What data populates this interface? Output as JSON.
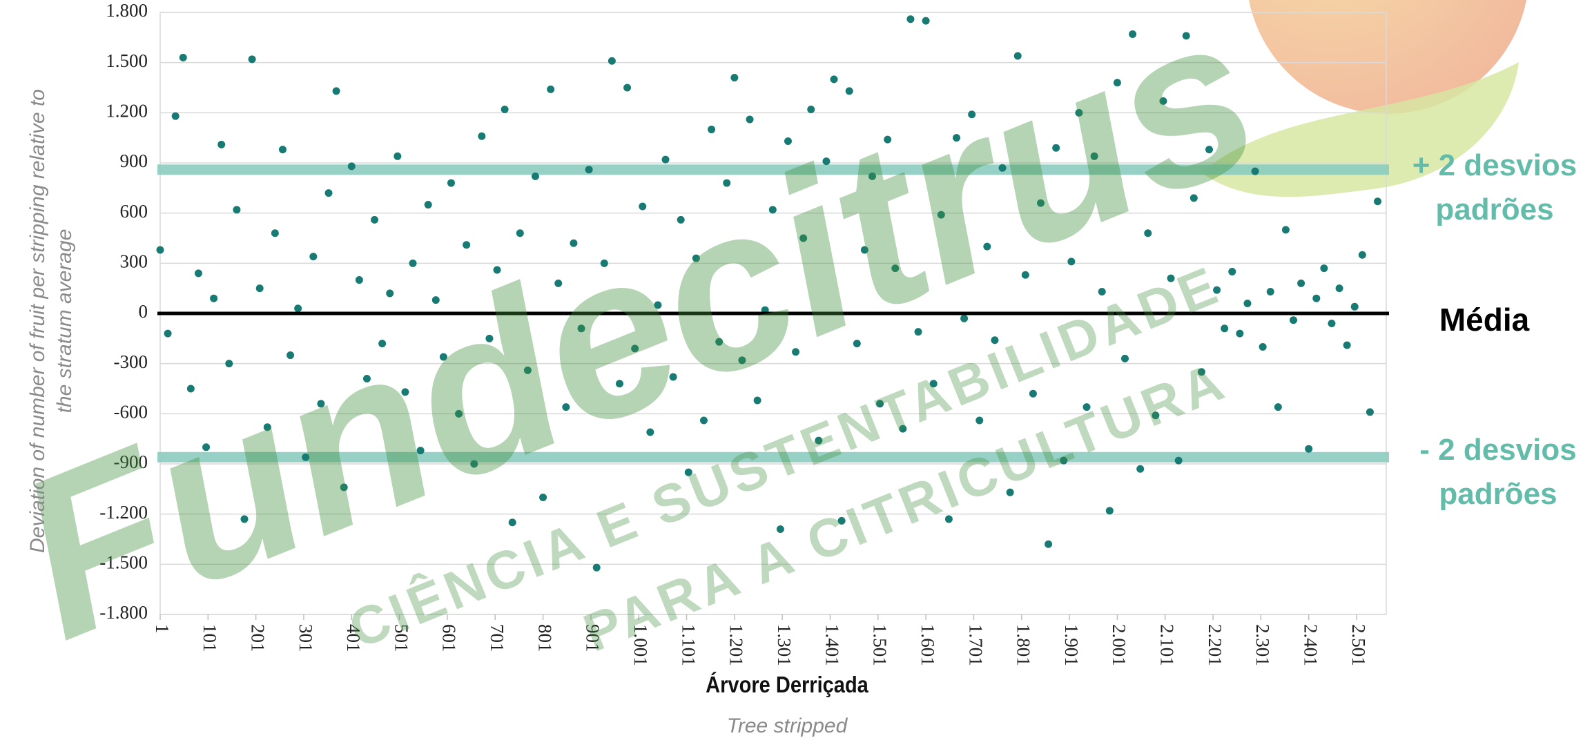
{
  "chart_data": {
    "type": "scatter",
    "y_label": "Deviation of number of fruit per stripping relative to the stratum average",
    "x_label": "Árvore Derriçada",
    "x_sublabel": "Tree stripped",
    "watermark": "Fundecitrus",
    "watermark_slogan": [
      "CIÊNCIA E SUSTENTABILIDADE",
      "PARA A CITRICULTURA"
    ],
    "color": "#177a73",
    "grid": true,
    "xlim": [
      1,
      2563
    ],
    "ylim": [
      -1800,
      1800
    ],
    "yticks": [
      {
        "value": -1800,
        "label": "-1.800"
      },
      {
        "value": -1500,
        "label": "-1.500"
      },
      {
        "value": -1200,
        "label": "-1.200"
      },
      -900,
      -600,
      -300,
      0,
      300,
      600,
      900,
      {
        "value": 1200,
        "label": "1.200"
      },
      {
        "value": 1500,
        "label": "1.500"
      },
      {
        "value": 1800,
        "label": "1.800"
      }
    ],
    "xticks": [
      1,
      101,
      201,
      301,
      401,
      501,
      601,
      701,
      801,
      901,
      {
        "value": 1001,
        "label": "1.001"
      },
      {
        "value": 1101,
        "label": "1.101"
      },
      {
        "value": 1201,
        "label": "1.201"
      },
      {
        "value": 1301,
        "label": "1.301"
      },
      {
        "value": 1401,
        "label": "1.401"
      },
      {
        "value": 1501,
        "label": "1.501"
      },
      {
        "value": 1601,
        "label": "1.601"
      },
      {
        "value": 1701,
        "label": "1.701"
      },
      {
        "value": 1801,
        "label": "1.801"
      },
      {
        "value": 1901,
        "label": "1.901"
      },
      {
        "value": 2001,
        "label": "2.001"
      },
      {
        "value": 2101,
        "label": "2.101"
      },
      {
        "value": 2201,
        "label": "2.201"
      },
      {
        "value": 2301,
        "label": "2.301"
      },
      {
        "value": 2401,
        "label": "2.401"
      },
      {
        "value": 2501,
        "label": "2.501"
      }
    ],
    "reference_lines": [
      {
        "value": 860,
        "label": "+ 2 desvios padrões",
        "color": "#8ccdbf"
      },
      {
        "value": 0,
        "label": "Média",
        "color": "#000000"
      },
      {
        "value": -860,
        "label": "- 2 desvios padrões",
        "color": "#8ccdbf"
      }
    ],
    "x": [
      1,
      17,
      33,
      49,
      65,
      81,
      97,
      113,
      129,
      145,
      161,
      177,
      193,
      209,
      225,
      241,
      257,
      273,
      289,
      305,
      321,
      337,
      353,
      369,
      385,
      401,
      417,
      433,
      449,
      465,
      481,
      497,
      513,
      529,
      545,
      561,
      577,
      593,
      609,
      625,
      641,
      657,
      673,
      689,
      705,
      721,
      737,
      753,
      769,
      785,
      801,
      817,
      833,
      849,
      865,
      881,
      897,
      913,
      929,
      945,
      961,
      977,
      993,
      1009,
      1025,
      1041,
      1057,
      1073,
      1089,
      1105,
      1121,
      1137,
      1153,
      1169,
      1185,
      1201,
      1217,
      1233,
      1249,
      1265,
      1281,
      1297,
      1313,
      1329,
      1345,
      1361,
      1377,
      1393,
      1409,
      1425,
      1441,
      1457,
      1473,
      1489,
      1505,
      1521,
      1537,
      1553,
      1569,
      1585,
      1601,
      1617,
      1633,
      1649,
      1665,
      1681,
      1697,
      1713,
      1729,
      1745,
      1761,
      1777,
      1793,
      1809,
      1825,
      1841,
      1857,
      1873,
      1889,
      1905,
      1921,
      1937,
      1953,
      1969,
      1985,
      2001,
      2017,
      2033,
      2049,
      2065,
      2081,
      2097,
      2113,
      2129,
      2145,
      2161,
      2177,
      2193,
      2209,
      2225,
      2241,
      2257,
      2273,
      2289,
      2305,
      2321,
      2337,
      2353,
      2369,
      2385,
      2401,
      2417,
      2433,
      2449,
      2465,
      2481,
      2497,
      2513,
      2529,
      2545
    ],
    "values": [
      380,
      -120,
      1180,
      1530,
      -450,
      240,
      -800,
      90,
      1010,
      -300,
      620,
      -1230,
      1520,
      150,
      -680,
      480,
      980,
      -250,
      30,
      -860,
      340,
      -540,
      720,
      1330,
      -1040,
      880,
      200,
      -390,
      560,
      -180,
      120,
      940,
      -470,
      300,
      -820,
      650,
      80,
      -260,
      780,
      -600,
      410,
      -900,
      1060,
      -150,
      260,
      1220,
      -1250,
      480,
      -340,
      820,
      -1100,
      1340,
      180,
      -560,
      420,
      -90,
      860,
      -1520,
      300,
      1510,
      -420,
      1350,
      -210,
      640,
      -710,
      50,
      920,
      -380,
      560,
      -950,
      330,
      -640,
      1100,
      -170,
      780,
      1410,
      -280,
      1160,
      -520,
      20,
      620,
      -1290,
      1030,
      -230,
      450,
      1220,
      -760,
      910,
      1400,
      -1240,
      1330,
      -180,
      380,
      820,
      -540,
      1040,
      270,
      -690,
      1760,
      -110,
      1750,
      -420,
      590,
      -1230,
      1050,
      -30,
      1190,
      -640,
      400,
      -160,
      870,
      -1070,
      1540,
      230,
      -480,
      660,
      -1380,
      990,
      -880,
      310,
      1200,
      -560,
      940,
      130,
      -1180,
      1380,
      -270,
      1670,
      -930,
      480,
      -610,
      1270,
      210,
      -880,
      1660,
      690,
      -350,
      980,
      140,
      -90,
      250,
      -120,
      60,
      850,
      -200,
      130,
      -560,
      500,
      -40,
      180,
      -810,
      90,
      270,
      -60,
      150,
      -190,
      40,
      350,
      -590,
      670
    ]
  }
}
